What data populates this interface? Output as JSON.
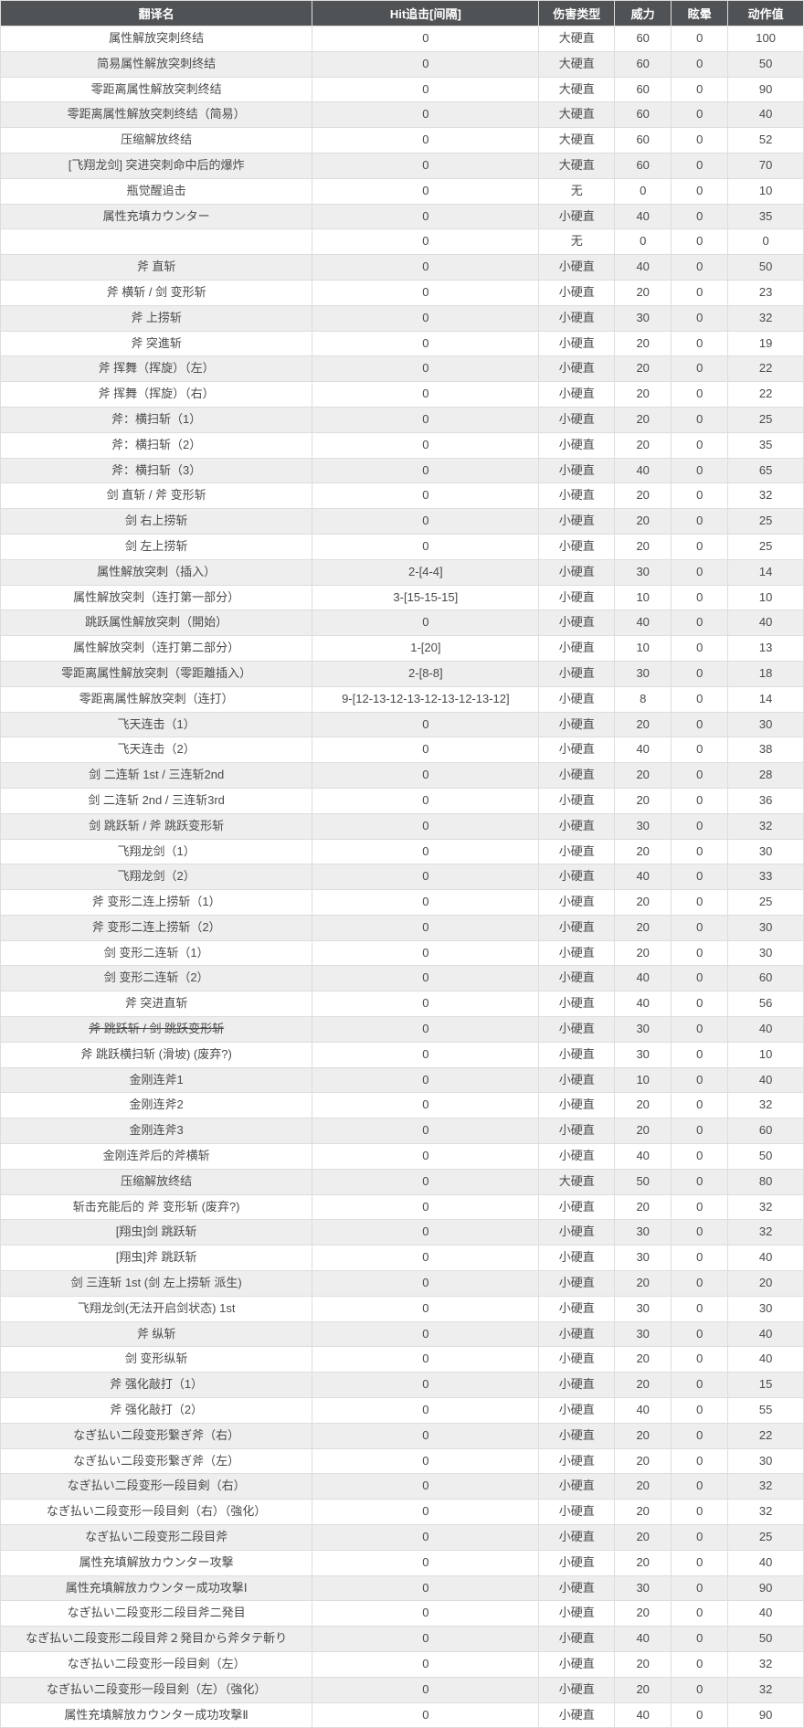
{
  "columns": [
    {
      "key": "name",
      "label": "翻译名"
    },
    {
      "key": "hit",
      "label": "Hit追击[间隔]"
    },
    {
      "key": "type",
      "label": "伤害类型"
    },
    {
      "key": "power",
      "label": "威力"
    },
    {
      "key": "stun",
      "label": "眩晕"
    },
    {
      "key": "action",
      "label": "动作值"
    }
  ],
  "rows": [
    {
      "name": "属性解放突刺终结",
      "hit": "0",
      "type": "大硬直",
      "power": "60",
      "stun": "0",
      "action": "100"
    },
    {
      "name": "简易属性解放突刺终结",
      "hit": "0",
      "type": "大硬直",
      "power": "60",
      "stun": "0",
      "action": "50"
    },
    {
      "name": "零距离属性解放突刺终结",
      "hit": "0",
      "type": "大硬直",
      "power": "60",
      "stun": "0",
      "action": "90"
    },
    {
      "name": "零距离属性解放突刺终结（简易）",
      "hit": "0",
      "type": "大硬直",
      "power": "60",
      "stun": "0",
      "action": "40"
    },
    {
      "name": "压缩解放终结",
      "hit": "0",
      "type": "大硬直",
      "power": "60",
      "stun": "0",
      "action": "52"
    },
    {
      "name": "[飞翔龙剑] 突进突刺命中后的爆炸",
      "hit": "0",
      "type": "大硬直",
      "power": "60",
      "stun": "0",
      "action": "70"
    },
    {
      "name": "瓶觉醒追击",
      "hit": "0",
      "type": "无",
      "power": "0",
      "stun": "0",
      "action": "10"
    },
    {
      "name": "属性充填カウンター",
      "hit": "0",
      "type": "小硬直",
      "power": "40",
      "stun": "0",
      "action": "35"
    },
    {
      "name": "",
      "hit": "0",
      "type": "无",
      "power": "0",
      "stun": "0",
      "action": "0"
    },
    {
      "name": "斧 直斩",
      "hit": "0",
      "type": "小硬直",
      "power": "40",
      "stun": "0",
      "action": "50"
    },
    {
      "name": "斧 横斩 / 剑 变形斩",
      "hit": "0",
      "type": "小硬直",
      "power": "20",
      "stun": "0",
      "action": "23"
    },
    {
      "name": "斧 上捞斩",
      "hit": "0",
      "type": "小硬直",
      "power": "30",
      "stun": "0",
      "action": "32"
    },
    {
      "name": "斧 突進斩",
      "hit": "0",
      "type": "小硬直",
      "power": "20",
      "stun": "0",
      "action": "19"
    },
    {
      "name": "斧 挥舞（挥旋）（左）",
      "hit": "0",
      "type": "小硬直",
      "power": "20",
      "stun": "0",
      "action": "22"
    },
    {
      "name": "斧 挥舞（挥旋）（右）",
      "hit": "0",
      "type": "小硬直",
      "power": "20",
      "stun": "0",
      "action": "22"
    },
    {
      "name": "斧：横扫斩（1）",
      "hit": "0",
      "type": "小硬直",
      "power": "20",
      "stun": "0",
      "action": "25"
    },
    {
      "name": "斧：横扫斩（2）",
      "hit": "0",
      "type": "小硬直",
      "power": "20",
      "stun": "0",
      "action": "35"
    },
    {
      "name": "斧：横扫斩（3）",
      "hit": "0",
      "type": "小硬直",
      "power": "40",
      "stun": "0",
      "action": "65"
    },
    {
      "name": "剑 直斩 / 斧 变形斩",
      "hit": "0",
      "type": "小硬直",
      "power": "20",
      "stun": "0",
      "action": "32"
    },
    {
      "name": "剑 右上捞斩",
      "hit": "0",
      "type": "小硬直",
      "power": "20",
      "stun": "0",
      "action": "25"
    },
    {
      "name": "剑 左上捞斩",
      "hit": "0",
      "type": "小硬直",
      "power": "20",
      "stun": "0",
      "action": "25"
    },
    {
      "name": "属性解放突刺（插入）",
      "hit": "2-[4-4]",
      "type": "小硬直",
      "power": "30",
      "stun": "0",
      "action": "14"
    },
    {
      "name": "属性解放突刺（连打第一部分）",
      "hit": "3-[15-15-15]",
      "type": "小硬直",
      "power": "10",
      "stun": "0",
      "action": "10"
    },
    {
      "name": "跳跃属性解放突刺（開始）",
      "hit": "0",
      "type": "小硬直",
      "power": "40",
      "stun": "0",
      "action": "40"
    },
    {
      "name": "属性解放突刺（连打第二部分）",
      "hit": "1-[20]",
      "type": "小硬直",
      "power": "10",
      "stun": "0",
      "action": "13"
    },
    {
      "name": "零距离属性解放突刺（零距離插入）",
      "hit": "2-[8-8]",
      "type": "小硬直",
      "power": "30",
      "stun": "0",
      "action": "18"
    },
    {
      "name": "零距离属性解放突刺（连打）",
      "hit": "9-[12-13-12-13-12-13-12-13-12]",
      "type": "小硬直",
      "power": "8",
      "stun": "0",
      "action": "14"
    },
    {
      "name": "飞天连击（1）",
      "hit": "0",
      "type": "小硬直",
      "power": "20",
      "stun": "0",
      "action": "30"
    },
    {
      "name": "飞天连击（2）",
      "hit": "0",
      "type": "小硬直",
      "power": "40",
      "stun": "0",
      "action": "38"
    },
    {
      "name": "剑 二连斩 1st / 三连斩2nd",
      "hit": "0",
      "type": "小硬直",
      "power": "20",
      "stun": "0",
      "action": "28"
    },
    {
      "name": "剑 二连斩 2nd / 三连斩3rd",
      "hit": "0",
      "type": "小硬直",
      "power": "20",
      "stun": "0",
      "action": "36"
    },
    {
      "name": "剑 跳跃斩 / 斧 跳跃变形斩",
      "hit": "0",
      "type": "小硬直",
      "power": "30",
      "stun": "0",
      "action": "32"
    },
    {
      "name": "飞翔龙剑（1）",
      "hit": "0",
      "type": "小硬直",
      "power": "20",
      "stun": "0",
      "action": "30"
    },
    {
      "name": "飞翔龙剑（2）",
      "hit": "0",
      "type": "小硬直",
      "power": "40",
      "stun": "0",
      "action": "33"
    },
    {
      "name": "斧 变形二连上捞斩（1）",
      "hit": "0",
      "type": "小硬直",
      "power": "20",
      "stun": "0",
      "action": "25"
    },
    {
      "name": "斧 变形二连上捞斩（2）",
      "hit": "0",
      "type": "小硬直",
      "power": "20",
      "stun": "0",
      "action": "30"
    },
    {
      "name": "剑 变形二连斩（1）",
      "hit": "0",
      "type": "小硬直",
      "power": "20",
      "stun": "0",
      "action": "30"
    },
    {
      "name": "剑 变形二连斩（2）",
      "hit": "0",
      "type": "小硬直",
      "power": "40",
      "stun": "0",
      "action": "60"
    },
    {
      "name": "斧 突进直斩",
      "hit": "0",
      "type": "小硬直",
      "power": "40",
      "stun": "0",
      "action": "56"
    },
    {
      "name": "斧 跳跃斩 / 剑 跳跃变形斩",
      "hit": "0",
      "type": "小硬直",
      "power": "30",
      "stun": "0",
      "action": "40",
      "strike": true
    },
    {
      "name": "斧 跳跃横扫斩 (滑坡) (废弃?)",
      "hit": "0",
      "type": "小硬直",
      "power": "30",
      "stun": "0",
      "action": "10"
    },
    {
      "name": "金刚连斧1",
      "hit": "0",
      "type": "小硬直",
      "power": "10",
      "stun": "0",
      "action": "40"
    },
    {
      "name": "金刚连斧2",
      "hit": "0",
      "type": "小硬直",
      "power": "20",
      "stun": "0",
      "action": "32"
    },
    {
      "name": "金刚连斧3",
      "hit": "0",
      "type": "小硬直",
      "power": "20",
      "stun": "0",
      "action": "60"
    },
    {
      "name": "金刚连斧后的斧横斩",
      "hit": "0",
      "type": "小硬直",
      "power": "40",
      "stun": "0",
      "action": "50"
    },
    {
      "name": "压缩解放终结",
      "hit": "0",
      "type": "大硬直",
      "power": "50",
      "stun": "0",
      "action": "80"
    },
    {
      "name": "斩击充能后的 斧 变形斩 (废弃?)",
      "hit": "0",
      "type": "小硬直",
      "power": "20",
      "stun": "0",
      "action": "32"
    },
    {
      "name": "[翔虫]剑 跳跃斩",
      "hit": "0",
      "type": "小硬直",
      "power": "30",
      "stun": "0",
      "action": "32"
    },
    {
      "name": "[翔虫]斧 跳跃斩",
      "hit": "0",
      "type": "小硬直",
      "power": "30",
      "stun": "0",
      "action": "40"
    },
    {
      "name": "剑 三连斩 1st (剑 左上捞斩 派生)",
      "hit": "0",
      "type": "小硬直",
      "power": "20",
      "stun": "0",
      "action": "20"
    },
    {
      "name": "飞翔龙剑(无法开启剑状态) 1st",
      "hit": "0",
      "type": "小硬直",
      "power": "30",
      "stun": "0",
      "action": "30"
    },
    {
      "name": "斧 纵斩",
      "hit": "0",
      "type": "小硬直",
      "power": "30",
      "stun": "0",
      "action": "40"
    },
    {
      "name": "剑 变形纵斩",
      "hit": "0",
      "type": "小硬直",
      "power": "20",
      "stun": "0",
      "action": "40"
    },
    {
      "name": "斧 强化敲打（1）",
      "hit": "0",
      "type": "小硬直",
      "power": "20",
      "stun": "0",
      "action": "15"
    },
    {
      "name": "斧 强化敲打（2）",
      "hit": "0",
      "type": "小硬直",
      "power": "40",
      "stun": "0",
      "action": "55"
    },
    {
      "name": "なぎ払い二段变形繋ぎ斧（右）",
      "hit": "0",
      "type": "小硬直",
      "power": "20",
      "stun": "0",
      "action": "22"
    },
    {
      "name": "なぎ払い二段变形繋ぎ斧（左）",
      "hit": "0",
      "type": "小硬直",
      "power": "20",
      "stun": "0",
      "action": "30"
    },
    {
      "name": "なぎ払い二段变形一段目剣（右）",
      "hit": "0",
      "type": "小硬直",
      "power": "20",
      "stun": "0",
      "action": "32"
    },
    {
      "name": "なぎ払い二段变形一段目剣（右）（強化）",
      "hit": "0",
      "type": "小硬直",
      "power": "20",
      "stun": "0",
      "action": "32"
    },
    {
      "name": "なぎ払い二段变形二段目斧",
      "hit": "0",
      "type": "小硬直",
      "power": "20",
      "stun": "0",
      "action": "25"
    },
    {
      "name": "属性充填解放カウンター攻撃",
      "hit": "0",
      "type": "小硬直",
      "power": "20",
      "stun": "0",
      "action": "40"
    },
    {
      "name": "属性充填解放カウンター成功攻撃Ⅰ",
      "hit": "0",
      "type": "小硬直",
      "power": "30",
      "stun": "0",
      "action": "90"
    },
    {
      "name": "なぎ払い二段变形二段目斧二発目",
      "hit": "0",
      "type": "小硬直",
      "power": "20",
      "stun": "0",
      "action": "40"
    },
    {
      "name": "なぎ払い二段变形二段目斧２発目から斧タテ斬り",
      "hit": "0",
      "type": "小硬直",
      "power": "40",
      "stun": "0",
      "action": "50"
    },
    {
      "name": "なぎ払い二段变形一段目剣（左）",
      "hit": "0",
      "type": "小硬直",
      "power": "20",
      "stun": "0",
      "action": "32"
    },
    {
      "name": "なぎ払い二段变形一段目剣（左）（強化）",
      "hit": "0",
      "type": "小硬直",
      "power": "20",
      "stun": "0",
      "action": "32"
    },
    {
      "name": "属性充填解放カウンター成功攻撃Ⅱ",
      "hit": "0",
      "type": "小硬直",
      "power": "40",
      "stun": "0",
      "action": "90"
    }
  ]
}
